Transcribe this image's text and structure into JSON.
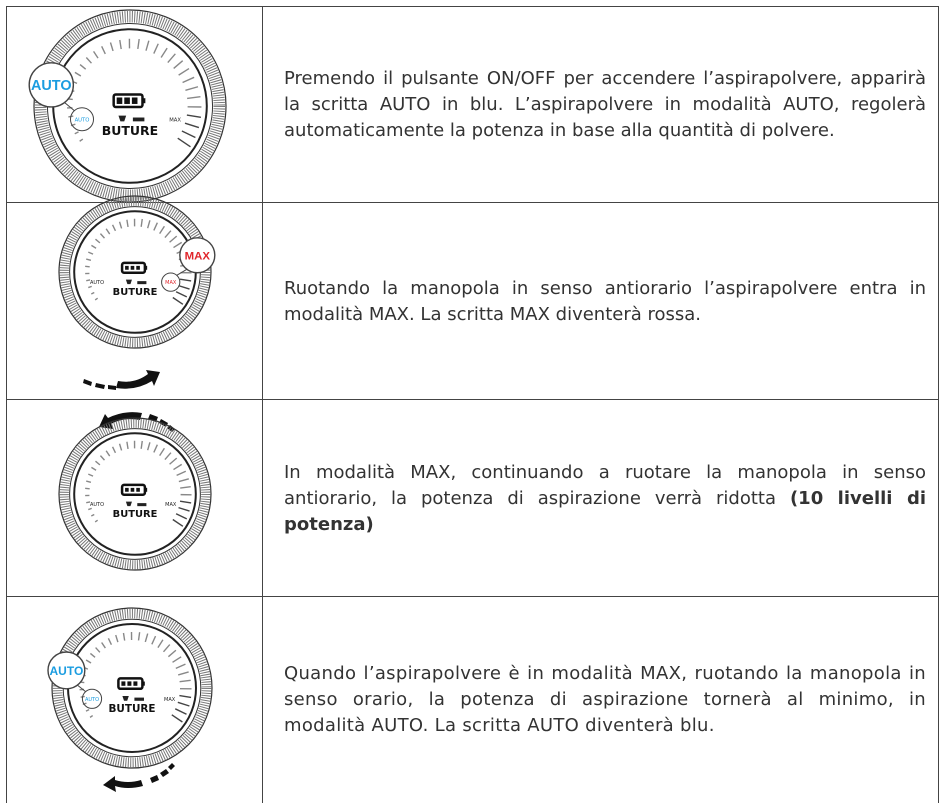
{
  "rows": [
    {
      "dial": {
        "callout": "AUTO",
        "auto": "AUTO",
        "max": "MAX",
        "brand": "BUTURE"
      },
      "text": "Premendo il pulsante ON/OFF per accendere l’aspirapolvere, apparirà la scritta AUTO in blu. L’aspirapolvere in modalità AUTO,  regolerà automaticamente la potenza in base alla quantità di polvere."
    },
    {
      "dial": {
        "callout": "MAX",
        "auto": "AUTO",
        "max": "MAX",
        "brand": "BUTURE"
      },
      "text": "Ruotando la manopola in senso antiorario l’aspirapolvere entra in modalità MAX. La scritta MAX diventerà rossa."
    },
    {
      "dial": {
        "auto": "AUTO",
        "max": "MAX",
        "brand": "BUTURE"
      },
      "text": "In modalità MAX, continuando a ruotare la manopola in senso antiorario, la potenza di aspirazione verrà ridotta ",
      "bold": "(10 livelli di potenza)"
    },
    {
      "dial": {
        "callout": "AUTO",
        "auto": "AUTO",
        "max": "MAX",
        "brand": "BUTURE"
      },
      "text": "Quando l’aspirapolvere è in modalità MAX, ruotando la manopola in senso orario, la potenza di aspirazione tornerà al minimo, in modalità AUTO. La scritta AUTO diventerà blu."
    }
  ]
}
